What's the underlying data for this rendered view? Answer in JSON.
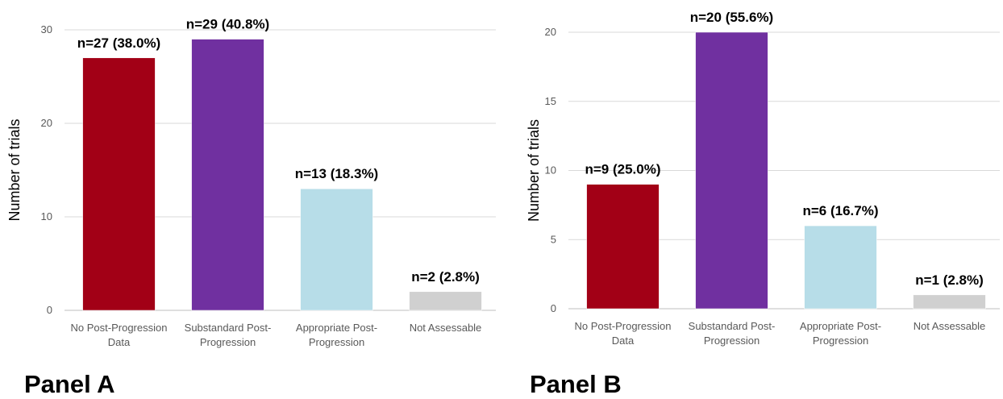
{
  "chart_data": [
    {
      "type": "bar",
      "panel_label": "Panel A",
      "categories": [
        [
          "No Post-Progression",
          "Data"
        ],
        [
          "Substandard Post-",
          "Progression"
        ],
        [
          "Appropriate Post-",
          "Progression"
        ],
        [
          "Not Assessable"
        ]
      ],
      "values": [
        27,
        29,
        13,
        2
      ],
      "data_labels": [
        "n=27 (38.0%)",
        "n=29 (40.8%)",
        "n=13 (18.3%)",
        "n=2 (2.8%)"
      ],
      "colors": [
        "#a20016",
        "#7030a0",
        "#b7dde8",
        "#d0d0d0"
      ],
      "ylabel": "Number of trials",
      "ylim": [
        0,
        30
      ],
      "yticks": [
        0,
        10,
        20,
        30
      ],
      "grid": true
    },
    {
      "type": "bar",
      "panel_label": "Panel B",
      "categories": [
        [
          "No Post-Progression",
          "Data"
        ],
        [
          "Substandard Post-",
          "Progression"
        ],
        [
          "Appropriate Post-",
          "Progression"
        ],
        [
          "Not Assessable"
        ]
      ],
      "values": [
        9,
        20,
        6,
        1
      ],
      "data_labels": [
        "n=9 (25.0%)",
        "n=20 (55.6%)",
        "n=6 (16.7%)",
        "n=1 (2.8%)"
      ],
      "colors": [
        "#a20016",
        "#7030a0",
        "#b7dde8",
        "#d0d0d0"
      ],
      "ylabel": "Number of trials",
      "ylim": [
        0,
        20
      ],
      "yticks": [
        0,
        5,
        10,
        15,
        20
      ],
      "grid": true
    }
  ]
}
